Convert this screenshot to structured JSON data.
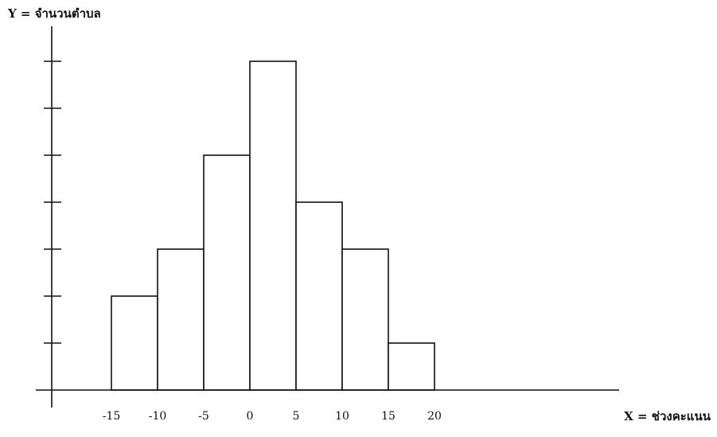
{
  "chart_data": {
    "type": "bar",
    "ylabel": "Y = จำนวนตำบล",
    "xlabel": "X  = ช่วงคะแนน",
    "x_tick_labels": [
      "-15",
      "-10",
      "-5",
      "0",
      "5",
      "10",
      "15",
      "20"
    ],
    "bins": [
      {
        "from": -15,
        "to": -10,
        "value": 2
      },
      {
        "from": -10,
        "to": -5,
        "value": 3
      },
      {
        "from": -5,
        "to": 0,
        "value": 5
      },
      {
        "from": 0,
        "to": 5,
        "value": 7
      },
      {
        "from": 5,
        "to": 10,
        "value": 4
      },
      {
        "from": 10,
        "to": 15,
        "value": 3
      },
      {
        "from": 15,
        "to": 20,
        "value": 1
      }
    ],
    "ylim": [
      0,
      7
    ],
    "y_tick_count": 7,
    "grid": false,
    "bar_fill": "#ffffff",
    "bar_stroke": "#111111",
    "axis_color": "#111111"
  }
}
